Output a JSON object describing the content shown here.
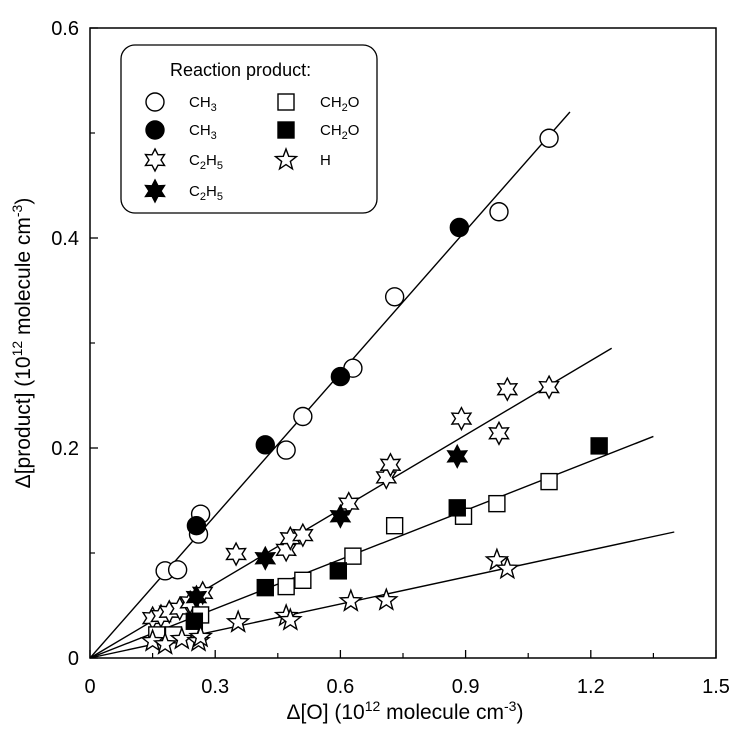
{
  "chart_data": {
    "type": "scatter",
    "xlabel": {
      "main": "Δ[O] (10",
      "sup": "12",
      "rest": " molecule cm",
      "sup2": "-3",
      "end": ")"
    },
    "ylabel": {
      "main": "Δ[product] (10",
      "sup": "12",
      "rest": " molecule cm",
      "sup2": "-3",
      "end": ")"
    },
    "xlim": [
      0,
      1.5
    ],
    "ylim": [
      0,
      0.6
    ],
    "x_ticks": [
      0,
      0.3,
      0.6,
      0.9,
      1.2,
      1.5
    ],
    "x_tick_labels": [
      "0",
      "0.3",
      "0.6",
      "0.9",
      "1.2",
      "1.5"
    ],
    "y_ticks": [
      0,
      0.2,
      0.4,
      0.6
    ],
    "y_tick_labels": [
      "0",
      "0.2",
      "0.4",
      "0.6"
    ],
    "legend": {
      "title": "Reaction product:",
      "placement": "top-left",
      "entries": [
        {
          "marker": "circle-open",
          "base": "CH",
          "sub1": "3",
          "mid": "",
          "sub2": "",
          "tail": ""
        },
        {
          "marker": "circle-filled",
          "base": "CH",
          "sub1": "3",
          "mid": "",
          "sub2": "",
          "tail": ""
        },
        {
          "marker": "star6-open",
          "base": "C",
          "sub1": "2",
          "mid": "H",
          "sub2": "5",
          "tail": ""
        },
        {
          "marker": "star6-filled",
          "base": "C",
          "sub1": "2",
          "mid": "H",
          "sub2": "5",
          "tail": ""
        },
        {
          "marker": "square-open",
          "base": "CH",
          "sub1": "2",
          "mid": "O",
          "sub2": "",
          "tail": ""
        },
        {
          "marker": "square-filled",
          "base": "CH",
          "sub1": "2",
          "mid": "O",
          "sub2": "",
          "tail": ""
        },
        {
          "marker": "star5-open",
          "base": "H",
          "sub1": "",
          "mid": "",
          "sub2": "",
          "tail": ""
        }
      ]
    },
    "fit_lines": [
      {
        "x": [
          0,
          1.15
        ],
        "y": [
          0,
          0.52
        ]
      },
      {
        "x": [
          0,
          1.25
        ],
        "y": [
          0,
          0.295
        ]
      },
      {
        "x": [
          0,
          1.35
        ],
        "y": [
          0,
          0.211
        ]
      },
      {
        "x": [
          0,
          1.4
        ],
        "y": [
          0,
          0.12
        ]
      }
    ],
    "series": [
      {
        "marker": "circle-open",
        "points": [
          [
            0.18,
            0.083
          ],
          [
            0.21,
            0.084
          ],
          [
            0.26,
            0.118
          ],
          [
            0.265,
            0.137
          ],
          [
            0.47,
            0.198
          ],
          [
            0.51,
            0.23
          ],
          [
            0.63,
            0.276
          ],
          [
            0.73,
            0.344
          ],
          [
            0.98,
            0.425
          ],
          [
            1.1,
            0.495
          ]
        ]
      },
      {
        "marker": "circle-filled",
        "points": [
          [
            0.255,
            0.126
          ],
          [
            0.42,
            0.203
          ],
          [
            0.6,
            0.268
          ],
          [
            0.885,
            0.41
          ]
        ]
      },
      {
        "marker": "star6-open",
        "points": [
          [
            0.15,
            0.038
          ],
          [
            0.17,
            0.04
          ],
          [
            0.19,
            0.044
          ],
          [
            0.215,
            0.047
          ],
          [
            0.24,
            0.053
          ],
          [
            0.27,
            0.062
          ],
          [
            0.35,
            0.099
          ],
          [
            0.47,
            0.103
          ],
          [
            0.48,
            0.114
          ],
          [
            0.51,
            0.117
          ],
          [
            0.62,
            0.147
          ],
          [
            0.71,
            0.172
          ],
          [
            0.72,
            0.184
          ],
          [
            0.89,
            0.228
          ],
          [
            0.98,
            0.214
          ],
          [
            1.0,
            0.256
          ],
          [
            1.1,
            0.258
          ]
        ]
      },
      {
        "marker": "star6-filled",
        "points": [
          [
            0.255,
            0.058
          ],
          [
            0.42,
            0.095
          ],
          [
            0.6,
            0.135
          ],
          [
            0.88,
            0.192
          ]
        ]
      },
      {
        "marker": "square-open",
        "points": [
          [
            0.16,
            0.022
          ],
          [
            0.2,
            0.022
          ],
          [
            0.265,
            0.041
          ],
          [
            0.47,
            0.068
          ],
          [
            0.51,
            0.074
          ],
          [
            0.63,
            0.097
          ],
          [
            0.73,
            0.126
          ],
          [
            0.895,
            0.135
          ],
          [
            0.975,
            0.147
          ],
          [
            1.1,
            0.168
          ]
        ]
      },
      {
        "marker": "square-filled",
        "points": [
          [
            0.25,
            0.035
          ],
          [
            0.42,
            0.067
          ],
          [
            0.595,
            0.083
          ],
          [
            0.88,
            0.143
          ],
          [
            1.22,
            0.202
          ]
        ]
      },
      {
        "marker": "star5-open",
        "points": [
          [
            0.15,
            0.016
          ],
          [
            0.18,
            0.013
          ],
          [
            0.22,
            0.018
          ],
          [
            0.26,
            0.016
          ],
          [
            0.265,
            0.02
          ],
          [
            0.355,
            0.034
          ],
          [
            0.47,
            0.04
          ],
          [
            0.48,
            0.036
          ],
          [
            0.625,
            0.054
          ],
          [
            0.71,
            0.055
          ],
          [
            0.975,
            0.093
          ],
          [
            1.0,
            0.085
          ]
        ]
      }
    ]
  }
}
